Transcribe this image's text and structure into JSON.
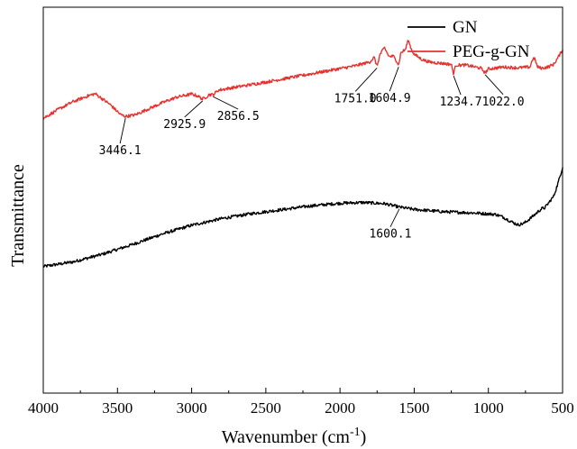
{
  "chart_data": {
    "type": "line",
    "title": "",
    "xlabel": "Wavenumber (cm",
    "xlabel_sup": "-1",
    "xlabel_end": ")",
    "ylabel": "Transmittance",
    "xlim": [
      4000,
      500
    ],
    "x_reversed": true,
    "ylim": [
      0,
      1
    ],
    "x_ticks": [
      4000,
      3500,
      3000,
      2500,
      2000,
      1500,
      1000,
      500
    ],
    "x_tick_labels": [
      "4000",
      "3500",
      "3000",
      "2500",
      "2000",
      "1500",
      "1000",
      "500"
    ],
    "y_ticks_shown": false,
    "grid": false,
    "legend_position": "top-right",
    "series": [
      {
        "name": "GN",
        "color": "#000000",
        "points": [
          [
            4000,
            0.328
          ],
          [
            3800,
            0.34
          ],
          [
            3600,
            0.36
          ],
          [
            3400,
            0.385
          ],
          [
            3200,
            0.412
          ],
          [
            3000,
            0.435
          ],
          [
            2800,
            0.452
          ],
          [
            2600,
            0.465
          ],
          [
            2400,
            0.475
          ],
          [
            2200,
            0.485
          ],
          [
            2000,
            0.492
          ],
          [
            1850,
            0.494
          ],
          [
            1700,
            0.491
          ],
          [
            1600,
            0.482
          ],
          [
            1500,
            0.476
          ],
          [
            1300,
            0.47
          ],
          [
            1100,
            0.467
          ],
          [
            950,
            0.463
          ],
          [
            900,
            0.456
          ],
          [
            850,
            0.445
          ],
          [
            800,
            0.436
          ],
          [
            760,
            0.44
          ],
          [
            720,
            0.452
          ],
          [
            680,
            0.465
          ],
          [
            660,
            0.472
          ],
          [
            640,
            0.478
          ],
          [
            620,
            0.48
          ],
          [
            600,
            0.49
          ],
          [
            560,
            0.51
          ],
          [
            530,
            0.545
          ],
          [
            500,
            0.585
          ]
        ],
        "noise": 0.004
      },
      {
        "name": "PEG-g-GN",
        "color": "#e8312e",
        "points": [
          [
            4000,
            0.712
          ],
          [
            3900,
            0.735
          ],
          [
            3800,
            0.755
          ],
          [
            3700,
            0.77
          ],
          [
            3650,
            0.776
          ],
          [
            3550,
            0.748
          ],
          [
            3480,
            0.722
          ],
          [
            3446,
            0.717
          ],
          [
            3380,
            0.721
          ],
          [
            3300,
            0.735
          ],
          [
            3200,
            0.752
          ],
          [
            3100,
            0.767
          ],
          [
            3000,
            0.775
          ],
          [
            2960,
            0.77
          ],
          [
            2926,
            0.762
          ],
          [
            2900,
            0.768
          ],
          [
            2880,
            0.774
          ],
          [
            2856,
            0.773
          ],
          [
            2820,
            0.785
          ],
          [
            2700,
            0.793
          ],
          [
            2500,
            0.806
          ],
          [
            2300,
            0.82
          ],
          [
            2100,
            0.834
          ],
          [
            1900,
            0.848
          ],
          [
            1800,
            0.858
          ],
          [
            1770,
            0.87
          ],
          [
            1751,
            0.847
          ],
          [
            1730,
            0.878
          ],
          [
            1700,
            0.895
          ],
          [
            1670,
            0.872
          ],
          [
            1640,
            0.873
          ],
          [
            1620,
            0.862
          ],
          [
            1604.9,
            0.85
          ],
          [
            1590,
            0.882
          ],
          [
            1560,
            0.89
          ],
          [
            1540,
            0.915
          ],
          [
            1520,
            0.892
          ],
          [
            1500,
            0.878
          ],
          [
            1450,
            0.865
          ],
          [
            1400,
            0.858
          ],
          [
            1300,
            0.854
          ],
          [
            1250,
            0.852
          ],
          [
            1234.7,
            0.827
          ],
          [
            1220,
            0.85
          ],
          [
            1150,
            0.85
          ],
          [
            1100,
            0.846
          ],
          [
            1050,
            0.842
          ],
          [
            1022,
            0.83
          ],
          [
            1000,
            0.84
          ],
          [
            900,
            0.845
          ],
          [
            800,
            0.843
          ],
          [
            720,
            0.845
          ],
          [
            700,
            0.867
          ],
          [
            685,
            0.865
          ],
          [
            670,
            0.845
          ],
          [
            640,
            0.842
          ],
          [
            600,
            0.845
          ],
          [
            560,
            0.852
          ],
          [
            530,
            0.87
          ],
          [
            500,
            0.89
          ]
        ],
        "noise": 0.004
      }
    ],
    "annotations": [
      {
        "label": "3446.1",
        "x": 3446.1,
        "series": "PEG-g-GN"
      },
      {
        "label": "2925.9",
        "x": 2925.9,
        "series": "PEG-g-GN"
      },
      {
        "label": "2856.5",
        "x": 2856.5,
        "series": "PEG-g-GN"
      },
      {
        "label": "1751.0",
        "x": 1751.0,
        "series": "PEG-g-GN"
      },
      {
        "label": "1604.9",
        "x": 1604.9,
        "series": "PEG-g-GN"
      },
      {
        "label": "1234.7",
        "x": 1234.7,
        "series": "PEG-g-GN"
      },
      {
        "label": "1022.0",
        "x": 1022.0,
        "series": "PEG-g-GN"
      },
      {
        "label": "1600.1",
        "x": 1600.1,
        "series": "GN"
      }
    ]
  }
}
